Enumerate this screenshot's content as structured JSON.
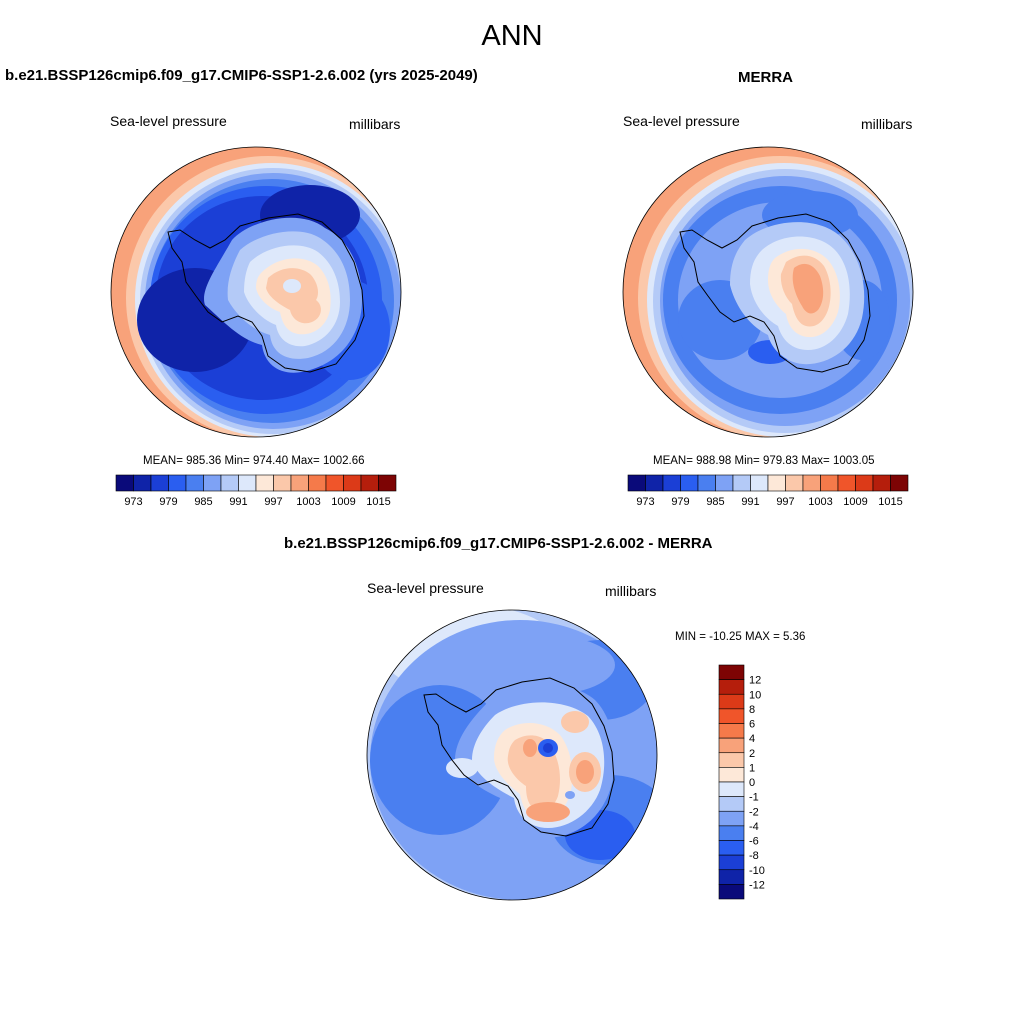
{
  "season": "ANN",
  "panels": [
    {
      "title": "b.e21.BSSP126cmip6.f09_g17.CMIP6-SSP1-2.6.002 (yrs 2025-2049)",
      "variable": "Sea-level pressure",
      "units": "millibars",
      "stats": "MEAN= 985.36  Min= 974.40  Max= 1002.66",
      "colorbar": {
        "colors": [
          "#0a0a7a",
          "#0f23a8",
          "#1b3fd6",
          "#2a5ef0",
          "#4a7ff0",
          "#7ea2f5",
          "#b4caf7",
          "#dde8fb",
          "#fde8d8",
          "#fbc8aa",
          "#f8a27a",
          "#f57a4a",
          "#f0552a",
          "#dc3a18",
          "#b51e0c",
          "#7d0404"
        ],
        "labels": [
          "973",
          "979",
          "985",
          "991",
          "997",
          "1003",
          "1009",
          "1015"
        ]
      }
    },
    {
      "title": "MERRA",
      "variable": "Sea-level pressure",
      "units": "millibars",
      "stats": "MEAN= 988.98  Min= 979.83  Max= 1003.05",
      "colorbar": {
        "colors": [
          "#0a0a7a",
          "#0f23a8",
          "#1b3fd6",
          "#2a5ef0",
          "#4a7ff0",
          "#7ea2f5",
          "#b4caf7",
          "#dde8fb",
          "#fde8d8",
          "#fbc8aa",
          "#f8a27a",
          "#f57a4a",
          "#f0552a",
          "#dc3a18",
          "#b51e0c",
          "#7d0404"
        ],
        "labels": [
          "973",
          "979",
          "985",
          "991",
          "997",
          "1003",
          "1009",
          "1015"
        ]
      }
    },
    {
      "title": "b.e21.BSSP126cmip6.f09_g17.CMIP6-SSP1-2.6.002 - MERRA",
      "variable": "Sea-level pressure",
      "units": "millibars",
      "stats": "MIN = -10.25 MAX =   5.36",
      "colorbar": {
        "colors": [
          "#7d0404",
          "#b51e0c",
          "#dc3a18",
          "#f0552a",
          "#f57a4a",
          "#f8a27a",
          "#fbc8aa",
          "#fde8d8",
          "#dde8fb",
          "#b4caf7",
          "#7ea2f5",
          "#4a7ff0",
          "#2a5ef0",
          "#1b3fd6",
          "#0f23a8",
          "#0a0a7a"
        ],
        "labels": [
          "12",
          "10",
          "8",
          "6",
          "4",
          "2",
          "1",
          "0",
          "-1",
          "-2",
          "-4",
          "-6",
          "-8",
          "-10",
          "-12"
        ]
      }
    }
  ]
}
